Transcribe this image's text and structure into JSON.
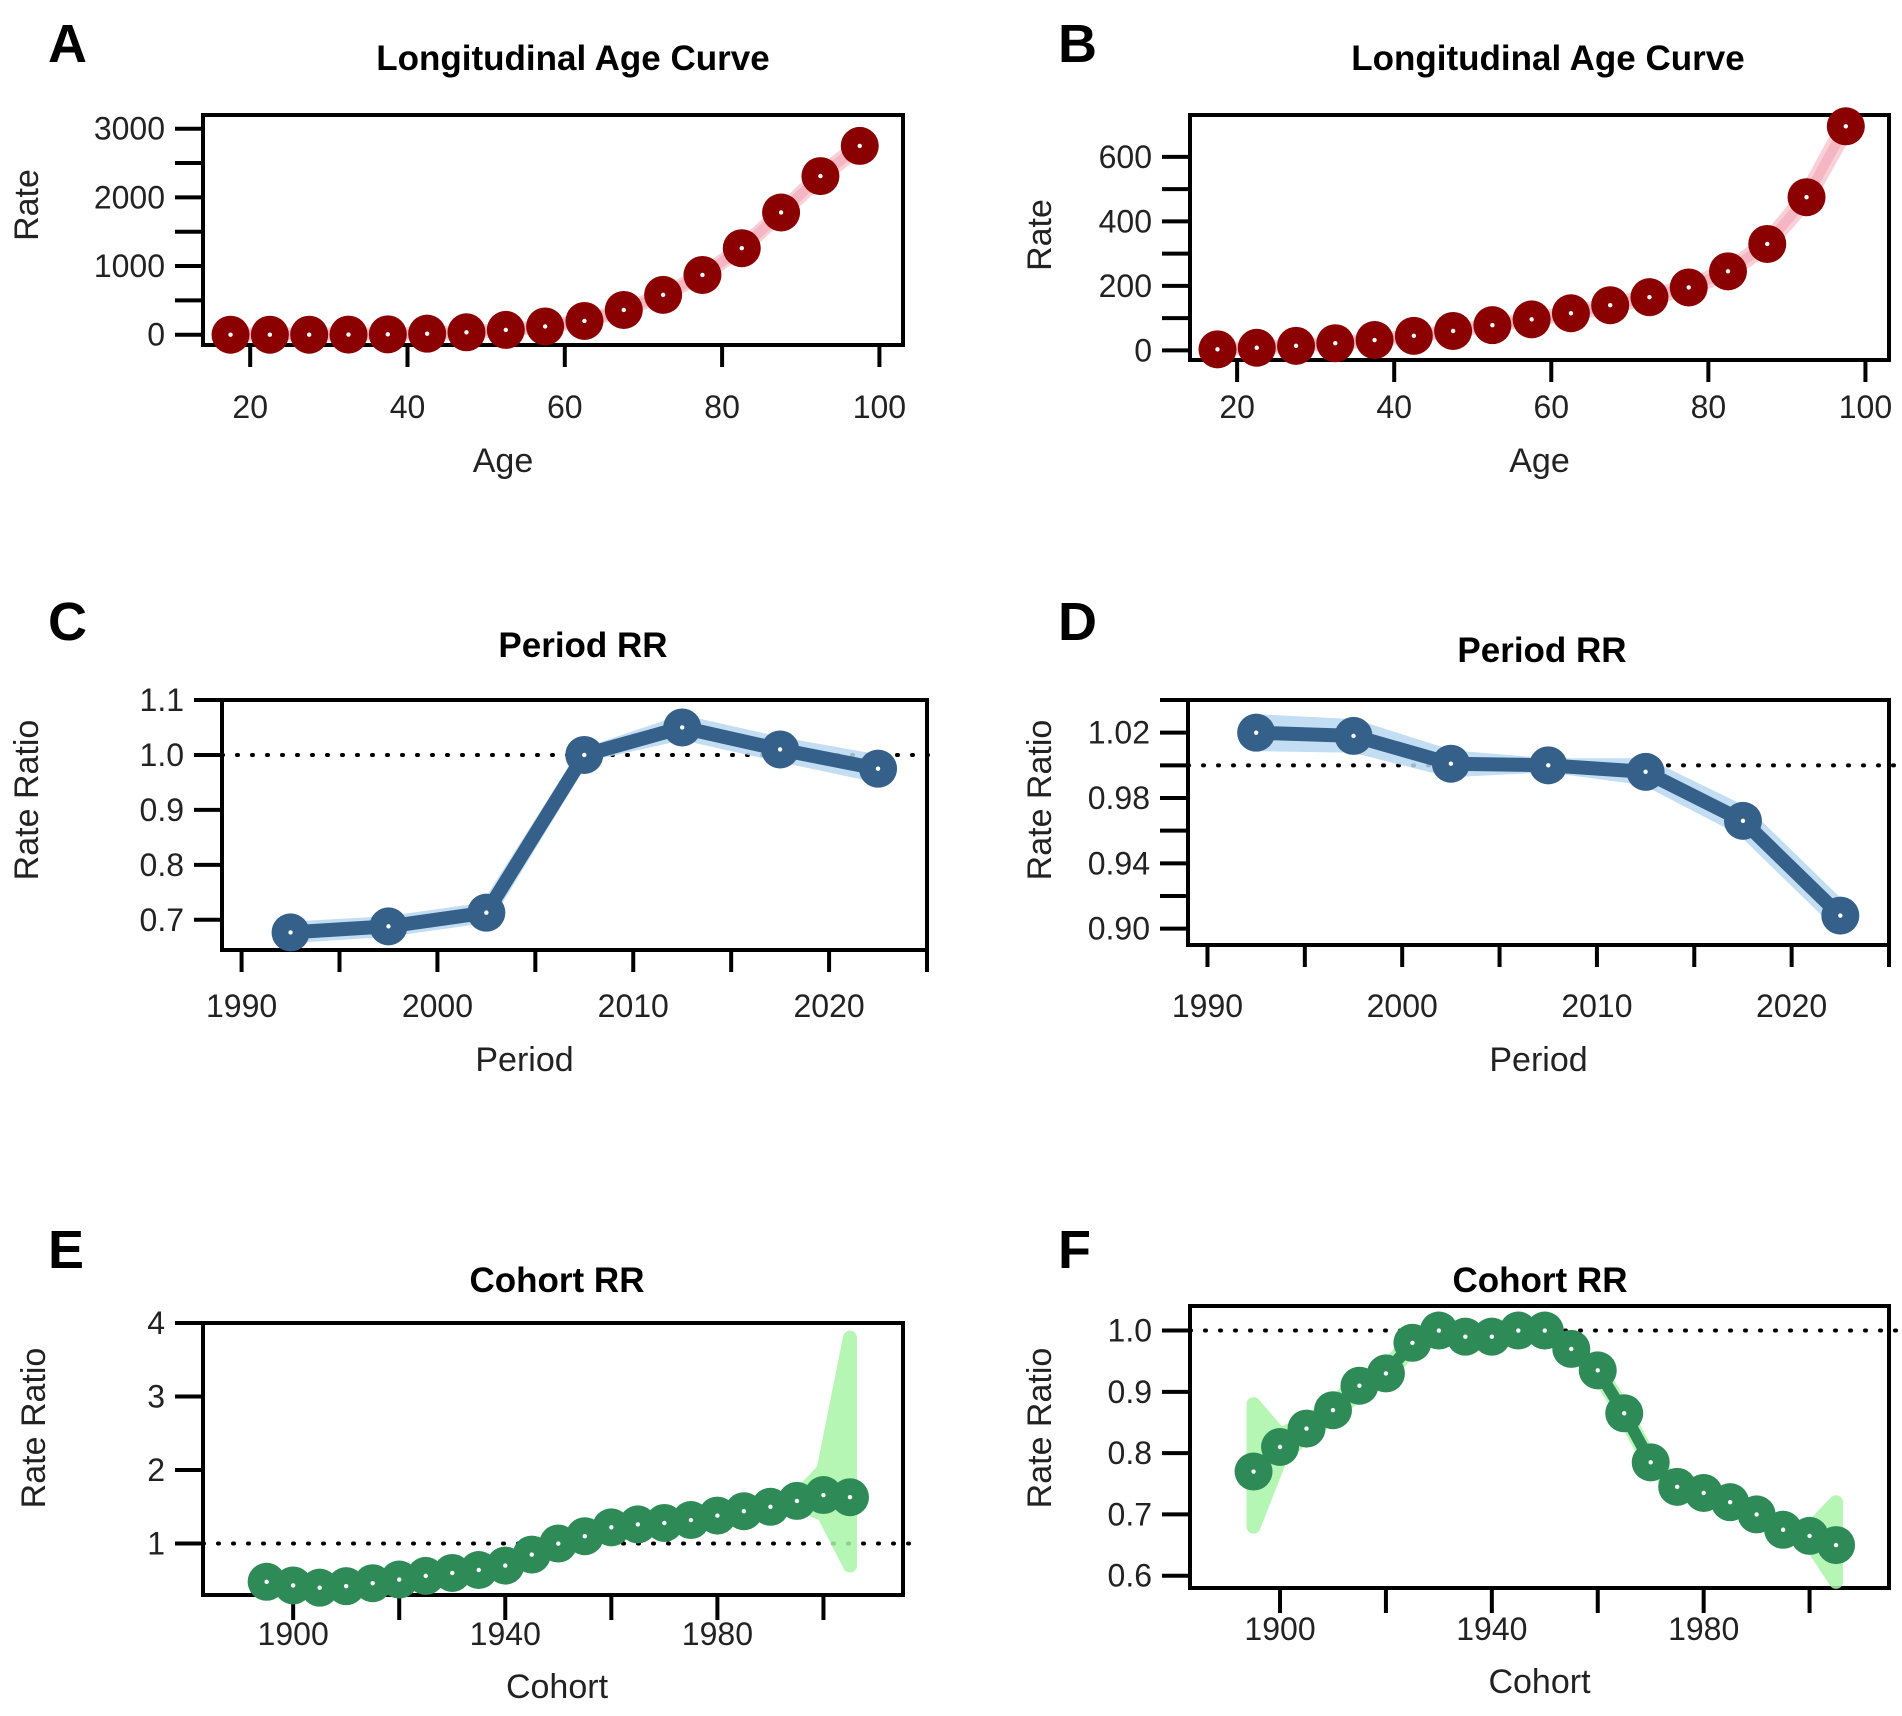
{
  "colors": {
    "age_point": "#8b0000",
    "age_line": "#f4b6c2",
    "age_band": "#f8c8d0",
    "period_point": "#34608a",
    "period_band": "#b9d8f2",
    "cohort_point": "#2e8b57",
    "cohort_band": "#a9f5a9"
  },
  "chart_data": [
    {
      "panel": "A",
      "type": "line",
      "title": "Longitudinal Age Curve",
      "xlabel": "Age",
      "ylabel": "Rate",
      "xlim": [
        14,
        103
      ],
      "ylim": [
        -150,
        3200
      ],
      "xticks": [
        20,
        40,
        60,
        80,
        100
      ],
      "yticks": [
        0,
        1000,
        2000,
        3000
      ],
      "yminor": [
        500,
        1500,
        2500
      ],
      "x": [
        17.5,
        22.5,
        27.5,
        32.5,
        37.5,
        42.5,
        47.5,
        52.5,
        57.5,
        62.5,
        67.5,
        72.5,
        77.5,
        82.5,
        87.5,
        92.5,
        97.5
      ],
      "y": [
        0,
        0,
        0,
        2,
        5,
        15,
        35,
        70,
        120,
        200,
        360,
        580,
        870,
        1260,
        1780,
        2310,
        2750
      ],
      "lower": [
        0,
        0,
        0,
        2,
        5,
        15,
        35,
        70,
        120,
        200,
        355,
        575,
        860,
        1245,
        1760,
        2280,
        2720
      ],
      "upper": [
        0,
        0,
        0,
        2,
        5,
        15,
        35,
        70,
        120,
        200,
        365,
        585,
        880,
        1275,
        1800,
        2340,
        2780
      ],
      "reference": null,
      "style": "age"
    },
    {
      "panel": "B",
      "type": "line",
      "title": "Longitudinal Age Curve",
      "xlabel": "Age",
      "ylabel": "Rate",
      "xlim": [
        14,
        103
      ],
      "ylim": [
        -30,
        730
      ],
      "xticks": [
        20,
        40,
        60,
        80,
        100
      ],
      "yticks": [
        0,
        200,
        400,
        600
      ],
      "yminor": [
        100,
        300,
        500
      ],
      "x": [
        17.5,
        22.5,
        27.5,
        32.5,
        37.5,
        42.5,
        47.5,
        52.5,
        57.5,
        62.5,
        67.5,
        72.5,
        77.5,
        82.5,
        87.5,
        92.5,
        97.5
      ],
      "y": [
        3,
        8,
        14,
        22,
        32,
        45,
        60,
        78,
        96,
        115,
        140,
        165,
        195,
        245,
        330,
        475,
        695
      ],
      "lower": [
        3,
        8,
        14,
        22,
        32,
        45,
        60,
        77,
        95,
        113,
        137,
        161,
        190,
        238,
        322,
        462,
        678
      ],
      "upper": [
        3,
        8,
        14,
        22,
        32,
        45,
        60,
        79,
        97,
        117,
        143,
        169,
        200,
        252,
        338,
        488,
        712
      ],
      "reference": null,
      "style": "age"
    },
    {
      "panel": "C",
      "type": "line",
      "title": "Period RR",
      "xlabel": "Period",
      "ylabel": "Rate Ratio",
      "xlim": [
        1989,
        2025
      ],
      "ylim": [
        0.645,
        1.1
      ],
      "xticks": [
        1990,
        2000,
        2010,
        2020
      ],
      "xminor": [
        1995,
        2005,
        2015,
        2025
      ],
      "yticks": [
        0.7,
        0.8,
        0.9,
        1.0,
        1.1
      ],
      "yticklabels": [
        "0.7",
        "0.8",
        "0.9",
        "1.0",
        "1.1"
      ],
      "x": [
        1992.5,
        1997.5,
        2002.5,
        2007.5,
        2012.5,
        2017.5,
        2022.5
      ],
      "y": [
        0.677,
        0.688,
        0.713,
        1.0,
        1.05,
        1.01,
        0.975
      ],
      "lower": [
        0.67,
        0.682,
        0.707,
        1.0,
        1.04,
        1.0,
        0.962
      ],
      "upper": [
        0.684,
        0.694,
        0.719,
        1.0,
        1.06,
        1.02,
        0.988
      ],
      "reference": 1.0,
      "style": "period"
    },
    {
      "panel": "D",
      "type": "line",
      "title": "Period RR",
      "xlabel": "Period",
      "ylabel": "Rate Ratio",
      "xlim": [
        1989,
        2025
      ],
      "ylim": [
        0.89,
        1.04
      ],
      "xticks": [
        1990,
        2000,
        2010,
        2020
      ],
      "xminor": [
        1995,
        2005,
        2015,
        2025
      ],
      "yticks": [
        0.9,
        0.94,
        0.98,
        1.02
      ],
      "yticklabels": [
        "0.90",
        "0.94",
        "0.98",
        "1.02"
      ],
      "yminor": [
        0.92,
        0.96,
        1.0,
        1.04
      ],
      "x": [
        1992.5,
        1997.5,
        2002.5,
        2007.5,
        2012.5,
        2017.5,
        2022.5
      ],
      "y": [
        1.02,
        1.018,
        1.001,
        1.0,
        0.996,
        0.966,
        0.908
      ],
      "lower": [
        1.013,
        1.012,
        0.997,
        1.0,
        0.992,
        0.961,
        0.903
      ],
      "upper": [
        1.027,
        1.024,
        1.005,
        1.0,
        1.0,
        0.971,
        0.913
      ],
      "reference": 1.0,
      "style": "period"
    },
    {
      "panel": "E",
      "type": "line",
      "title": "Cohort RR",
      "xlabel": "Cohort",
      "ylabel": "Rate Ratio",
      "xlim": [
        1883,
        2015
      ],
      "ylim": [
        0.3,
        4.0
      ],
      "xticks": [
        1900,
        1940,
        1980
      ],
      "xminor": [
        1920,
        1960,
        2000
      ],
      "yticks": [
        1,
        2,
        3,
        4
      ],
      "x": [
        1895,
        1900,
        1905,
        1910,
        1915,
        1920,
        1925,
        1930,
        1935,
        1940,
        1945,
        1950,
        1955,
        1960,
        1965,
        1970,
        1975,
        1980,
        1985,
        1990,
        1995,
        2000,
        2005
      ],
      "y": [
        0.48,
        0.43,
        0.4,
        0.42,
        0.46,
        0.51,
        0.56,
        0.6,
        0.64,
        0.7,
        0.85,
        1.0,
        1.1,
        1.22,
        1.26,
        1.28,
        1.32,
        1.38,
        1.44,
        1.5,
        1.58,
        1.66,
        1.63
      ],
      "lower": [
        0.44,
        0.4,
        0.38,
        0.4,
        0.44,
        0.49,
        0.54,
        0.58,
        0.62,
        0.68,
        0.83,
        0.98,
        1.08,
        1.2,
        1.24,
        1.26,
        1.3,
        1.36,
        1.42,
        1.47,
        1.54,
        1.4,
        0.7
      ],
      "upper": [
        0.52,
        0.46,
        0.42,
        0.44,
        0.48,
        0.53,
        0.58,
        0.62,
        0.66,
        0.72,
        0.87,
        1.02,
        1.12,
        1.24,
        1.28,
        1.3,
        1.34,
        1.4,
        1.46,
        1.53,
        1.62,
        2.0,
        3.8
      ],
      "reference": 1.0,
      "style": "cohort"
    },
    {
      "panel": "F",
      "type": "line",
      "title": "Cohort RR",
      "xlabel": "Cohort",
      "ylabel": "Rate Ratio",
      "xlim": [
        1883,
        2015
      ],
      "ylim": [
        0.58,
        1.04
      ],
      "xticks": [
        1900,
        1940,
        1980
      ],
      "xminor": [
        1920,
        1960,
        2000
      ],
      "yticks": [
        0.6,
        0.7,
        0.8,
        0.9,
        1.0
      ],
      "yticklabels": [
        "0.6",
        "0.7",
        "0.8",
        "0.9",
        "1.0"
      ],
      "x": [
        1895,
        1900,
        1905,
        1910,
        1915,
        1920,
        1925,
        1930,
        1935,
        1940,
        1945,
        1950,
        1955,
        1960,
        1965,
        1970,
        1975,
        1980,
        1985,
        1990,
        1995,
        2000,
        2005
      ],
      "y": [
        0.77,
        0.81,
        0.84,
        0.87,
        0.91,
        0.93,
        0.98,
        1.0,
        0.99,
        0.99,
        1.0,
        1.0,
        0.97,
        0.935,
        0.865,
        0.785,
        0.745,
        0.735,
        0.72,
        0.7,
        0.675,
        0.665,
        0.65
      ],
      "lower": [
        0.68,
        0.79,
        0.83,
        0.86,
        0.9,
        0.92,
        0.975,
        0.995,
        0.985,
        0.985,
        0.995,
        0.995,
        0.965,
        0.93,
        0.86,
        0.78,
        0.74,
        0.73,
        0.715,
        0.695,
        0.67,
        0.655,
        0.59
      ],
      "upper": [
        0.88,
        0.83,
        0.85,
        0.88,
        0.92,
        0.94,
        0.985,
        1.005,
        0.995,
        0.995,
        1.005,
        1.005,
        0.975,
        0.94,
        0.87,
        0.79,
        0.75,
        0.74,
        0.725,
        0.705,
        0.68,
        0.675,
        0.72
      ],
      "reference": 1.0,
      "style": "cohort"
    }
  ]
}
